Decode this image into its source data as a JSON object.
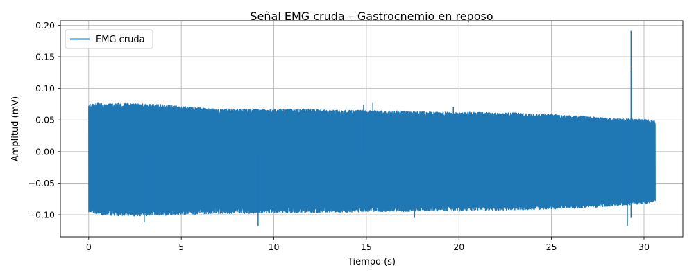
{
  "chart_data": {
    "type": "line",
    "title": "Señal EMG cruda – Gastrocnemio en reposo",
    "xlabel": "Tiempo (s)",
    "ylabel": "Amplitud (mV)",
    "xlim": [
      -1.53,
      32.1
    ],
    "ylim": [
      -0.135,
      0.207
    ],
    "xticks": [
      0,
      5,
      10,
      15,
      20,
      25,
      30
    ],
    "xtick_labels": [
      "0",
      "5",
      "10",
      "15",
      "20",
      "25",
      "30"
    ],
    "yticks": [
      -0.1,
      -0.05,
      0.0,
      0.05,
      0.1,
      0.15,
      0.2
    ],
    "ytick_labels": [
      "−0.10",
      "−0.05",
      "0.00",
      "0.05",
      "0.10",
      "0.15",
      "0.20"
    ],
    "grid": true,
    "legend_position": "upper-left",
    "colors": {
      "series": "#1f77b4",
      "grid": "#b0b0b0",
      "axes": "#000000"
    },
    "series": [
      {
        "name": "EMG cruda",
        "x_range": [
          0,
          30.6
        ],
        "envelope": {
          "t": [
            0,
            0.5,
            1,
            2,
            3,
            4,
            5,
            6,
            7,
            8,
            9,
            10,
            11,
            12,
            13,
            14,
            15,
            16,
            17,
            18,
            19,
            20,
            21,
            22,
            23,
            24,
            25,
            26,
            27,
            28,
            29,
            30,
            30.6
          ],
          "upper": [
            0.074,
            0.075,
            0.074,
            0.075,
            0.074,
            0.073,
            0.07,
            0.068,
            0.066,
            0.066,
            0.066,
            0.065,
            0.066,
            0.066,
            0.064,
            0.064,
            0.064,
            0.063,
            0.063,
            0.062,
            0.061,
            0.061,
            0.061,
            0.06,
            0.06,
            0.058,
            0.058,
            0.056,
            0.054,
            0.052,
            0.051,
            0.05,
            0.048
          ],
          "lower": [
            -0.096,
            -0.1,
            -0.101,
            -0.102,
            -0.102,
            -0.101,
            -0.1,
            -0.099,
            -0.098,
            -0.098,
            -0.098,
            -0.097,
            -0.097,
            -0.097,
            -0.096,
            -0.096,
            -0.095,
            -0.095,
            -0.095,
            -0.094,
            -0.094,
            -0.094,
            -0.093,
            -0.093,
            -0.093,
            -0.092,
            -0.091,
            -0.09,
            -0.089,
            -0.087,
            -0.085,
            -0.083,
            -0.08
          ]
        },
        "spikes": [
          {
            "t": 29.3,
            "value": 0.191
          },
          {
            "t": 29.32,
            "value": 0.128
          },
          {
            "t": 29.1,
            "value": -0.118
          },
          {
            "t": 29.3,
            "value": -0.105
          },
          {
            "t": 9.15,
            "value": -0.118
          },
          {
            "t": 3.0,
            "value": -0.112
          },
          {
            "t": 15.35,
            "value": 0.077
          },
          {
            "t": 14.85,
            "value": 0.074
          },
          {
            "t": 17.6,
            "value": -0.105
          },
          {
            "t": 19.7,
            "value": 0.071
          }
        ]
      }
    ]
  }
}
